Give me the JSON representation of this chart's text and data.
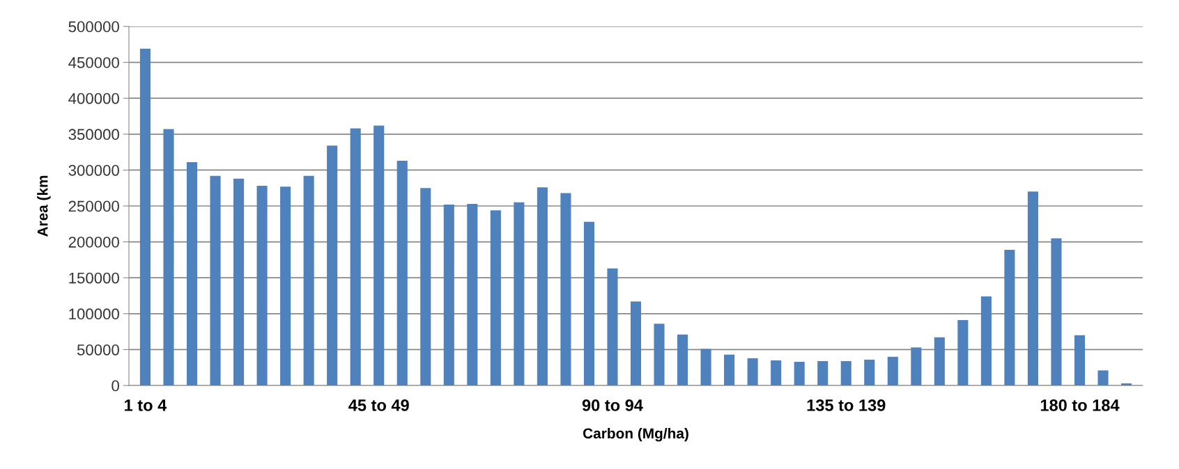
{
  "chart_data": {
    "type": "bar",
    "xlabel": "Carbon (Mg/ha)",
    "ylabel": "Area (km",
    "categories": [
      "1 to 4",
      null,
      null,
      null,
      null,
      null,
      null,
      null,
      null,
      null,
      "45 to 49",
      null,
      null,
      null,
      null,
      null,
      null,
      null,
      null,
      null,
      "90 to 94",
      null,
      null,
      null,
      null,
      null,
      null,
      null,
      null,
      null,
      "135 to 139",
      null,
      null,
      null,
      null,
      null,
      null,
      null,
      null,
      null,
      "180 to 184",
      null,
      null
    ],
    "values": [
      469000,
      357000,
      311000,
      292000,
      288000,
      278000,
      277000,
      292000,
      334000,
      358000,
      362000,
      313000,
      275000,
      252000,
      253000,
      244000,
      255000,
      276000,
      268000,
      228000,
      163000,
      117000,
      86000,
      71000,
      51000,
      43000,
      38000,
      35000,
      33000,
      34000,
      34000,
      36000,
      40000,
      53000,
      67000,
      91000,
      124000,
      189000,
      270000,
      205000,
      70000,
      21000,
      3000
    ],
    "color": "#4f81bd",
    "ylim": [
      0,
      500000
    ],
    "yticks": [
      0,
      50000,
      100000,
      150000,
      200000,
      250000,
      300000,
      350000,
      400000,
      450000,
      500000
    ],
    "grid": "y"
  }
}
